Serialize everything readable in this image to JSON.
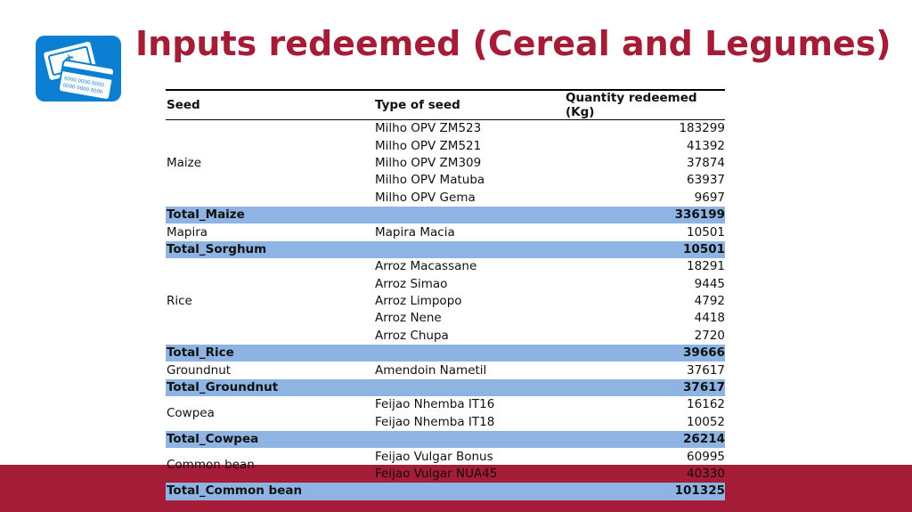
{
  "title": "Inputs redeemed (Cereal and Legumes)",
  "logo": {
    "icon": "money-card-icon",
    "card_text_1": "0000 0000 0000",
    "card_text_2": "0000 0000 0000"
  },
  "colors": {
    "title": "#a51c36",
    "band": "#a51c36",
    "total_row": "#8eb4e3",
    "logo_bg": "#0b7fd1"
  },
  "table": {
    "headers": [
      "Seed",
      "Type of seed",
      "Quantity redeemed (Kg)"
    ],
    "groups": [
      {
        "seed": "Maize",
        "rows": [
          {
            "type": "Milho OPV ZM523",
            "qty": "183299"
          },
          {
            "type": "Milho OPV ZM521",
            "qty": "41392"
          },
          {
            "type": "Milho OPV ZM309",
            "qty": "37874"
          },
          {
            "type": "Milho OPV Matuba",
            "qty": "63937"
          },
          {
            "type": "Milho OPV Gema",
            "qty": "9697"
          }
        ],
        "total_label": "Total_Maize",
        "total": "336199"
      },
      {
        "seed": "Mapira",
        "rows": [
          {
            "type": "Mapira Macia",
            "qty": "10501"
          }
        ],
        "total_label": "Total_Sorghum",
        "total": "10501"
      },
      {
        "seed": "Rice",
        "rows": [
          {
            "type": "Arroz Macassane",
            "qty": "18291"
          },
          {
            "type": "Arroz Simao",
            "qty": "9445"
          },
          {
            "type": "Arroz Limpopo",
            "qty": "4792"
          },
          {
            "type": "Arroz Nene",
            "qty": "4418"
          },
          {
            "type": "Arroz Chupa",
            "qty": "2720"
          }
        ],
        "total_label": "Total_Rice",
        "total": "39666"
      },
      {
        "seed": "Groundnut",
        "rows": [
          {
            "type": "Amendoin Nametil",
            "qty": "37617"
          }
        ],
        "total_label": "Total_Groundnut",
        "total": "37617"
      },
      {
        "seed": "Cowpea",
        "rows": [
          {
            "type": "Feijao Nhemba IT16",
            "qty": "16162"
          },
          {
            "type": "Feijao Nhemba IT18",
            "qty": "10052"
          }
        ],
        "total_label": "Total_Cowpea",
        "total": "26214"
      },
      {
        "seed": "Common bean",
        "rows": [
          {
            "type": "Feijao Vulgar Bonus",
            "qty": "60995"
          },
          {
            "type": "Feijao Vulgar NUA45",
            "qty": "40330"
          }
        ],
        "total_label": "Total_Common bean",
        "total": "101325"
      }
    ]
  }
}
